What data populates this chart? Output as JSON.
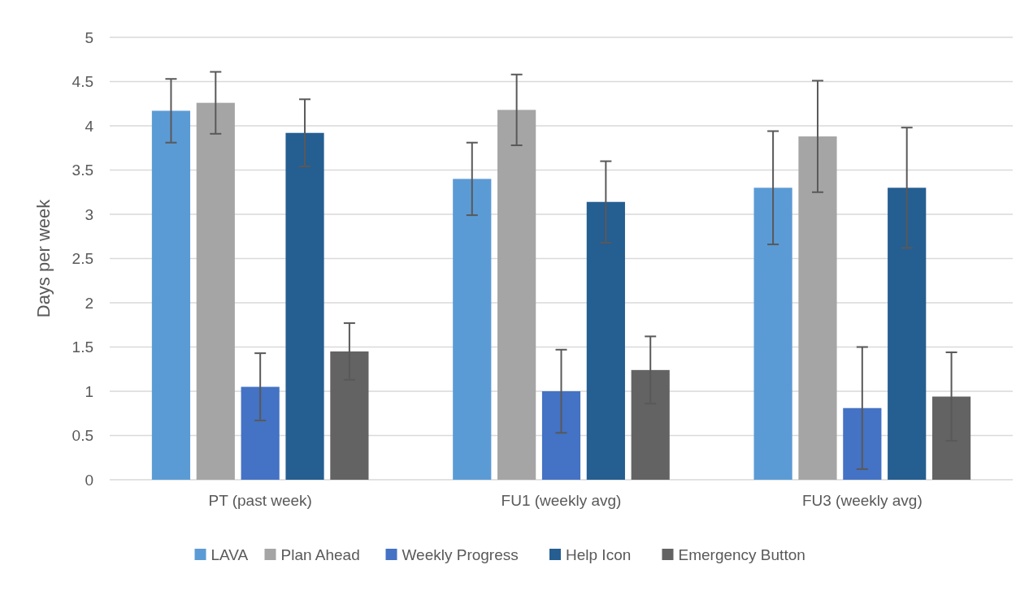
{
  "chart_data": {
    "type": "bar",
    "ylabel": "Days per week",
    "categories": [
      "PT (past week)",
      "FU1 (weekly avg)",
      "FU3 (weekly avg)"
    ],
    "series": [
      {
        "name": "LAVA",
        "color": "#5b9bd5",
        "values": [
          4.17,
          3.4,
          3.3
        ],
        "errors": [
          0.36,
          0.41,
          0.64
        ]
      },
      {
        "name": "Plan Ahead",
        "color": "#a5a5a5",
        "values": [
          4.26,
          4.18,
          3.88
        ],
        "errors": [
          0.35,
          0.4,
          0.63
        ]
      },
      {
        "name": "Weekly Progress",
        "color": "#4472c4",
        "values": [
          1.05,
          1.0,
          0.81
        ],
        "errors": [
          0.38,
          0.47,
          0.69
        ]
      },
      {
        "name": "Help Icon",
        "color": "#255e91",
        "values": [
          3.92,
          3.14,
          3.3
        ],
        "errors": [
          0.38,
          0.46,
          0.68
        ]
      },
      {
        "name": "Emergency Button",
        "color": "#636363",
        "values": [
          1.45,
          1.24,
          0.94
        ],
        "errors": [
          0.32,
          0.38,
          0.5
        ]
      }
    ],
    "ylim": [
      0,
      5
    ],
    "yticks": [
      0,
      0.5,
      1,
      1.5,
      2,
      2.5,
      3,
      3.5,
      4,
      4.5,
      5
    ],
    "grid": "y",
    "legend": "bottom"
  }
}
